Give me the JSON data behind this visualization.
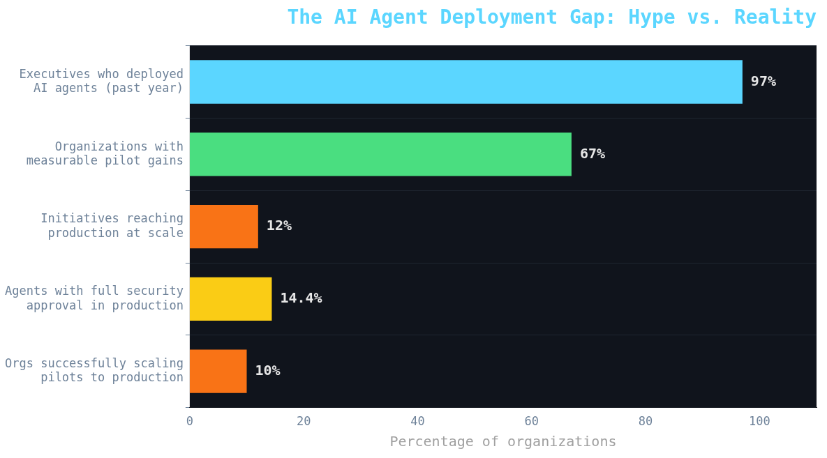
{
  "chart_data": {
    "type": "bar",
    "orientation": "horizontal",
    "title": "The AI Agent Deployment Gap: Hype vs. Reality",
    "xlabel": "Percentage of organizations",
    "categories": [
      "Executives who deployed\nAI agents (past year)",
      "Organizations with\nmeasurable pilot gains",
      "Initiatives reaching\nproduction at scale",
      "Agents with full security\napproval in production",
      "Orgs successfully scaling\npilots to production"
    ],
    "values": [
      97,
      67,
      12,
      14.4,
      10
    ],
    "colors": [
      "#5bd6ff",
      "#4ade80",
      "#f97316",
      "#facc15",
      "#f97316"
    ],
    "value_labels": [
      "97%",
      "67%",
      "12%",
      "14.4%",
      "10%"
    ],
    "xlim": [
      0,
      110
    ],
    "xticks": [
      0,
      20,
      40,
      60,
      80,
      100
    ],
    "grid": "y",
    "legend": false
  }
}
